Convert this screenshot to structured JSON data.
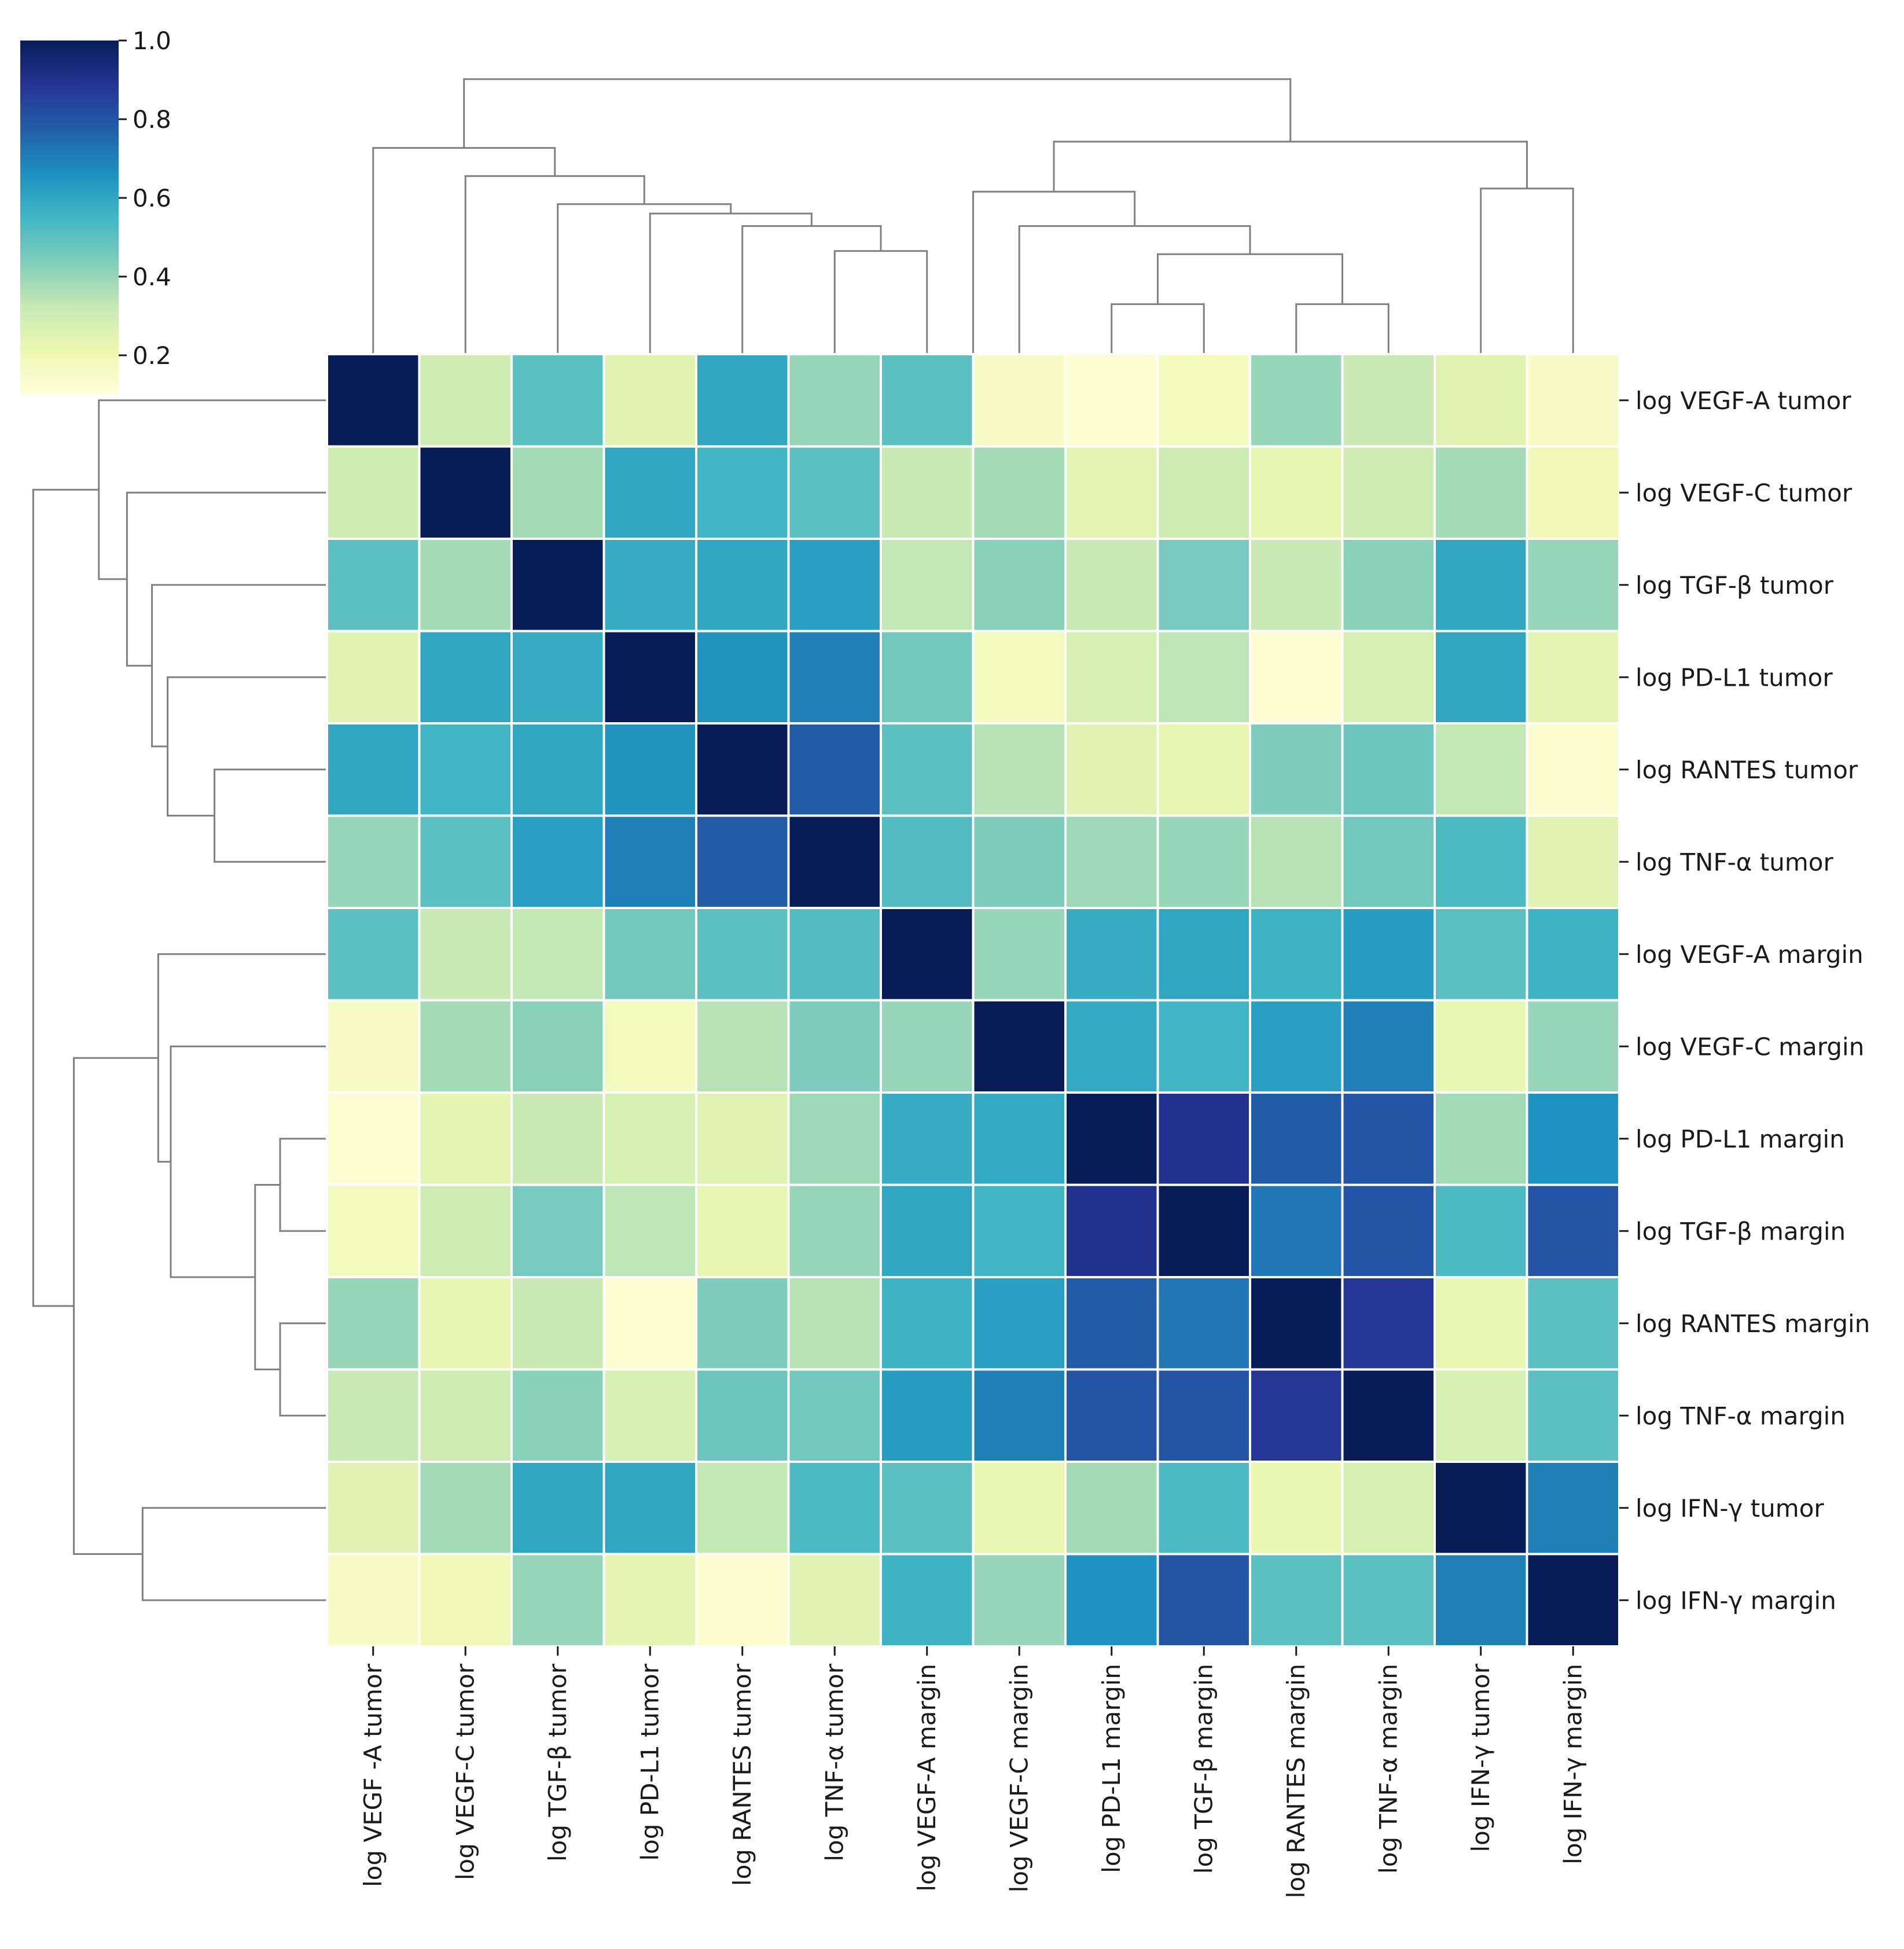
{
  "chart_data": {
    "type": "heatmap",
    "title": "",
    "colormap": "YlGnBu",
    "colorbar": {
      "min": 0.1,
      "max": 1.0,
      "ticks": [
        1.0,
        0.8,
        0.6,
        0.4,
        0.2
      ],
      "tick_labels": [
        "1.0",
        "0.8",
        "0.6",
        "0.4",
        "0.2"
      ]
    },
    "row_labels": [
      "log VEGF-A tumor",
      "log VEGF-C tumor",
      "log TGF-β tumor",
      "log PD-L1 tumor",
      "log RANTES tumor",
      "log TNF-α tumor",
      "log VEGF-A margin",
      "log VEGF-C margin",
      "log PD-L1 margin",
      "log TGF-β margin",
      "log RANTES margin",
      "log TNF-α margin",
      "log IFN-γ tumor",
      "log IFN-γ margin"
    ],
    "col_labels": [
      "log VEGF -A tumor",
      "log VEGF-C tumor",
      "log TGF-β tumor",
      "log PD-L1 tumor",
      "log RANTES tumor",
      "log TNF-α tumor",
      "log VEGF-A margin",
      "log VEGF-C margin",
      "log PD-L1 margin",
      "log TGF-β margin",
      "log RANTES margin",
      "log TNF-α margin",
      "log IFN-γ tumor",
      "log IFN-γ margin"
    ],
    "values": [
      [
        1.0,
        0.3,
        0.5,
        0.25,
        0.6,
        0.4,
        0.5,
        0.15,
        0.12,
        0.18,
        0.4,
        0.32,
        0.25,
        0.15
      ],
      [
        0.3,
        1.0,
        0.38,
        0.6,
        0.55,
        0.5,
        0.32,
        0.38,
        0.24,
        0.3,
        0.23,
        0.3,
        0.38,
        0.2
      ],
      [
        0.5,
        0.38,
        1.0,
        0.58,
        0.6,
        0.62,
        0.33,
        0.42,
        0.32,
        0.45,
        0.32,
        0.42,
        0.6,
        0.4
      ],
      [
        0.25,
        0.6,
        0.58,
        1.0,
        0.65,
        0.7,
        0.46,
        0.18,
        0.28,
        0.34,
        0.12,
        0.28,
        0.6,
        0.24
      ],
      [
        0.6,
        0.55,
        0.6,
        0.65,
        1.0,
        0.78,
        0.5,
        0.35,
        0.25,
        0.23,
        0.44,
        0.47,
        0.33,
        0.13
      ],
      [
        0.4,
        0.5,
        0.62,
        0.7,
        0.78,
        1.0,
        0.52,
        0.44,
        0.39,
        0.4,
        0.35,
        0.46,
        0.53,
        0.25
      ],
      [
        0.5,
        0.32,
        0.33,
        0.46,
        0.5,
        0.52,
        1.0,
        0.4,
        0.58,
        0.6,
        0.56,
        0.63,
        0.5,
        0.56
      ],
      [
        0.15,
        0.38,
        0.42,
        0.18,
        0.35,
        0.44,
        0.4,
        1.0,
        0.59,
        0.55,
        0.62,
        0.7,
        0.22,
        0.4
      ],
      [
        0.12,
        0.24,
        0.32,
        0.28,
        0.25,
        0.39,
        0.58,
        0.59,
        1.0,
        0.9,
        0.78,
        0.8,
        0.38,
        0.66
      ],
      [
        0.18,
        0.3,
        0.45,
        0.34,
        0.23,
        0.4,
        0.6,
        0.55,
        0.9,
        1.0,
        0.72,
        0.8,
        0.53,
        0.8
      ],
      [
        0.4,
        0.23,
        0.32,
        0.12,
        0.44,
        0.35,
        0.56,
        0.62,
        0.78,
        0.72,
        1.0,
        0.88,
        0.22,
        0.5
      ],
      [
        0.32,
        0.3,
        0.42,
        0.28,
        0.47,
        0.46,
        0.63,
        0.7,
        0.8,
        0.8,
        0.88,
        1.0,
        0.28,
        0.5
      ],
      [
        0.25,
        0.38,
        0.6,
        0.6,
        0.33,
        0.53,
        0.5,
        0.22,
        0.38,
        0.53,
        0.22,
        0.28,
        1.0,
        0.7
      ],
      [
        0.15,
        0.2,
        0.4,
        0.24,
        0.13,
        0.25,
        0.56,
        0.4,
        0.66,
        0.8,
        0.5,
        0.5,
        0.7,
        1.0
      ]
    ],
    "col_dendrogram": [
      {
        "name": "c-a",
        "children": [
          5,
          6
        ],
        "height": 0.33
      },
      {
        "name": "c-b",
        "children": [
          4,
          "c-a"
        ],
        "height": 0.41
      },
      {
        "name": "c-c",
        "children": [
          3,
          "c-b"
        ],
        "height": 0.45
      },
      {
        "name": "c-d",
        "children": [
          2,
          "c-c"
        ],
        "height": 0.48
      },
      {
        "name": "c-e",
        "children": [
          1,
          "c-d"
        ],
        "height": 0.57
      },
      {
        "name": "c-f",
        "children": [
          0,
          "c-e"
        ],
        "height": 0.66
      },
      {
        "name": "c-g",
        "children": [
          8,
          9
        ],
        "height": 0.16
      },
      {
        "name": "c-h",
        "children": [
          10,
          11
        ],
        "height": 0.16
      },
      {
        "name": "c-i",
        "children": [
          "c-g",
          "c-h"
        ],
        "height": 0.32
      },
      {
        "name": "c-j",
        "children": [
          7,
          "c-i"
        ],
        "height": 0.41
      },
      {
        "name": "c-k",
        "children": [
          6.5,
          "c-j"
        ],
        "height": 0.52
      },
      {
        "name": "c-l",
        "children": [
          12,
          13
        ],
        "height": 0.53
      },
      {
        "name": "c-m",
        "children": [
          "c-k",
          "c-l"
        ],
        "height": 0.68
      },
      {
        "name": "c-n",
        "children": [
          "c-f",
          "c-m"
        ],
        "height": 0.88
      }
    ],
    "row_dendrogram": [
      {
        "name": "r-a",
        "children": [
          4,
          5
        ],
        "height": 0.36
      },
      {
        "name": "r-b",
        "children": [
          3,
          "r-a"
        ],
        "height": 0.51
      },
      {
        "name": "r-c",
        "children": [
          2,
          "r-b"
        ],
        "height": 0.56
      },
      {
        "name": "r-d",
        "children": [
          1,
          "r-c"
        ],
        "height": 0.64
      },
      {
        "name": "r-e",
        "children": [
          0,
          "r-d"
        ],
        "height": 0.73
      },
      {
        "name": "r-f",
        "children": [
          8,
          9
        ],
        "height": 0.15
      },
      {
        "name": "r-g",
        "children": [
          10,
          11
        ],
        "height": 0.15
      },
      {
        "name": "r-h",
        "children": [
          "r-f",
          "r-g"
        ],
        "height": 0.23
      },
      {
        "name": "r-i",
        "children": [
          7,
          "r-h"
        ],
        "height": 0.5
      },
      {
        "name": "r-j",
        "children": [
          6,
          "r-i"
        ],
        "height": 0.54
      },
      {
        "name": "r-k",
        "children": [
          12,
          13
        ],
        "height": 0.59
      },
      {
        "name": "r-l",
        "children": [
          "r-j",
          "r-k"
        ],
        "height": 0.81
      },
      {
        "name": "r-m",
        "children": [
          "r-e",
          "r-l"
        ],
        "height": 0.94
      }
    ]
  }
}
